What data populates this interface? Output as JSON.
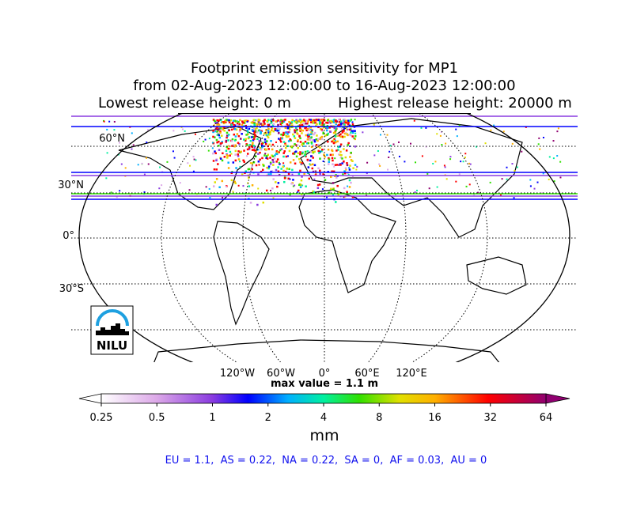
{
  "title": [
    "Footprint emission sensitivity for MP1",
    "from 02-Aug-2023 12:00:00 to 16-Aug-2023 12:00:00",
    "Lowest release height: 0 m",
    "Highest release height: 20000 m"
  ],
  "map": {
    "lat_labels": [
      "60°N",
      "30°N",
      "0°",
      "30°S"
    ],
    "lon_labels": [
      "120°W",
      "60°W",
      "0°",
      "60°E",
      "120°E"
    ],
    "logo": "NILU"
  },
  "max_value": "max value = 1.1 m",
  "colorbar": {
    "lim": [
      0.25,
      64
    ],
    "ticks": [
      0.25,
      0.5,
      1,
      2,
      4,
      8,
      16,
      32,
      64
    ],
    "log": true,
    "label": "mm"
  },
  "summary": "EU = 1.1,  AS = 0.22,  NA = 0.22,  SA = 0,  AF = 0.03,  AU = 0"
}
